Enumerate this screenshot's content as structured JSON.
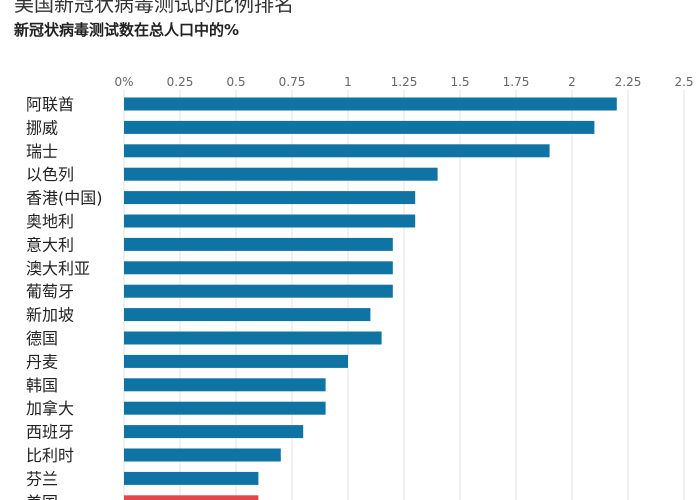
{
  "chart_data": {
    "type": "bar",
    "orientation": "horizontal",
    "title": "美国新冠状病毒测试的比例排名",
    "subtitle": "新冠状病毒测试数在总人口中的%",
    "xlabel": "",
    "ylabel": "",
    "xlim": [
      0,
      2.5
    ],
    "x_ticks": [
      "0%",
      "0.25",
      "0.5",
      "0.75",
      "1",
      "1.25",
      "1.5",
      "1.75",
      "2",
      "2.25",
      "2.5"
    ],
    "grid": true,
    "categories": [
      "阿联酋",
      "挪威",
      "瑞士",
      "以色列",
      "香港(中国)",
      "奥地利",
      "意大利",
      "澳大利亚",
      "葡萄牙",
      "新加坡",
      "德国",
      "丹麦",
      "韩国",
      "加拿大",
      "西班牙",
      "比利时",
      "芬兰",
      "美国"
    ],
    "values": [
      2.2,
      2.1,
      1.9,
      1.4,
      1.3,
      1.3,
      1.2,
      1.2,
      1.2,
      1.1,
      1.15,
      1.0,
      0.9,
      0.9,
      0.8,
      0.7,
      0.6,
      0.6
    ],
    "colors": {
      "bar": "#0f73a3",
      "highlight": "#e8444b",
      "highlight_category": "美国",
      "grid": "#e3e3e3"
    }
  }
}
